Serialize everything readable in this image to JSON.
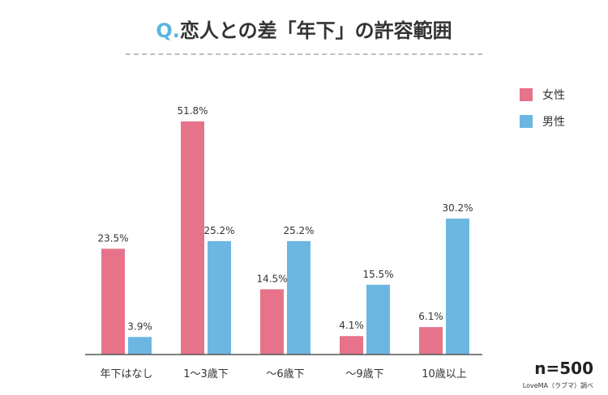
{
  "title": {
    "prefix": "Q.",
    "text": "恋人との差「年下」の許容範囲"
  },
  "footer": {
    "n": "n=500",
    "source": "LoveMA（ラブマ）調べ"
  },
  "colors": {
    "female": "#e6738a",
    "male": "#6cb6e2"
  },
  "chart_data": {
    "type": "bar",
    "categories": [
      "年下はなし",
      "1〜3歳下",
      "〜6歳下",
      "〜9歳下",
      "10歳以上"
    ],
    "series": [
      {
        "name": "女性",
        "values": [
          23.5,
          51.8,
          14.5,
          4.1,
          6.1
        ],
        "labels": [
          "23.5%",
          "51.8%",
          "14.5%",
          "4.1%",
          "6.1%"
        ]
      },
      {
        "name": "男性",
        "values": [
          3.9,
          25.2,
          25.2,
          15.5,
          30.2
        ],
        "labels": [
          "3.9%",
          "25.2%",
          "25.2%",
          "15.5%",
          "30.2%"
        ]
      }
    ],
    "legend": "right",
    "grid": false,
    "ylim": [
      0,
      51.8
    ]
  }
}
